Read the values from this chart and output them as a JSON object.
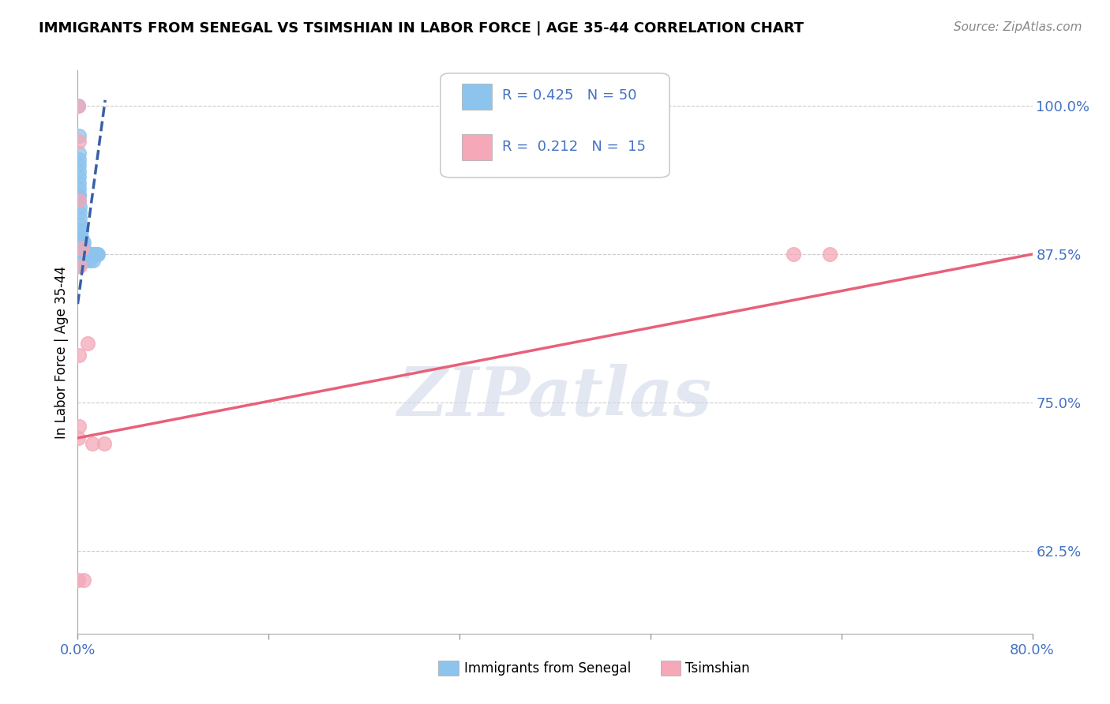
{
  "title": "IMMIGRANTS FROM SENEGAL VS TSIMSHIAN IN LABOR FORCE | AGE 35-44 CORRELATION CHART",
  "source": "Source: ZipAtlas.com",
  "ylabel": "In Labor Force | Age 35-44",
  "xlim": [
    0.0,
    0.8
  ],
  "ylim": [
    0.555,
    1.03
  ],
  "xticks": [
    0.0,
    0.16,
    0.32,
    0.48,
    0.64,
    0.8
  ],
  "xticklabels": [
    "0.0%",
    "",
    "",
    "",
    "",
    "80.0%"
  ],
  "ytick_positions": [
    0.625,
    0.75,
    0.875,
    1.0
  ],
  "ytick_labels": [
    "62.5%",
    "75.0%",
    "87.5%",
    "100.0%"
  ],
  "senegal_R": 0.425,
  "senegal_N": 50,
  "tsimshian_R": 0.212,
  "tsimshian_N": 15,
  "senegal_color": "#8DC4ED",
  "tsimshian_color": "#F4A8B8",
  "senegal_line_color": "#3A5FA8",
  "tsimshian_line_color": "#E8607A",
  "watermark_text": "ZIPatlas",
  "senegal_x": [
    0.0005,
    0.0008,
    0.001,
    0.001,
    0.001,
    0.001,
    0.001,
    0.001,
    0.001,
    0.001,
    0.001,
    0.001,
    0.0015,
    0.0015,
    0.002,
    0.002,
    0.002,
    0.003,
    0.003,
    0.003,
    0.004,
    0.004,
    0.005,
    0.005,
    0.005,
    0.006,
    0.007,
    0.007,
    0.008,
    0.009,
    0.01,
    0.01,
    0.011,
    0.012,
    0.013,
    0.013,
    0.014,
    0.015,
    0.016,
    0.017,
    0.0005,
    0.0005,
    0.0005,
    0.0005,
    0.0005,
    0.0008,
    0.0008,
    0.001,
    0.001,
    0.001
  ],
  "senegal_y": [
    1.0,
    0.975,
    0.96,
    0.955,
    0.95,
    0.945,
    0.94,
    0.935,
    0.93,
    0.925,
    0.925,
    0.92,
    0.915,
    0.91,
    0.905,
    0.9,
    0.895,
    0.895,
    0.89,
    0.885,
    0.885,
    0.88,
    0.885,
    0.88,
    0.875,
    0.875,
    0.875,
    0.87,
    0.875,
    0.875,
    0.875,
    0.87,
    0.875,
    0.875,
    0.875,
    0.87,
    0.875,
    0.875,
    0.875,
    0.875,
    0.885,
    0.88,
    0.875,
    0.87,
    0.865,
    0.885,
    0.88,
    0.875,
    0.87,
    0.865
  ],
  "tsimshian_x": [
    0.0005,
    0.0008,
    0.001,
    0.002,
    0.004,
    0.001,
    0.008,
    0.012,
    0.022,
    0.0005,
    0.001,
    0.0005,
    0.005,
    0.6,
    0.63
  ],
  "tsimshian_y": [
    1.0,
    0.97,
    0.92,
    0.865,
    0.88,
    0.79,
    0.8,
    0.715,
    0.715,
    0.72,
    0.73,
    0.6,
    0.6,
    0.875,
    0.875
  ],
  "senegal_trendline": [
    [
      0.0,
      0.023
    ],
    [
      0.833,
      1.005
    ]
  ],
  "tsimshian_trendline": [
    [
      0.0,
      0.8
    ],
    [
      0.72,
      0.875
    ]
  ]
}
